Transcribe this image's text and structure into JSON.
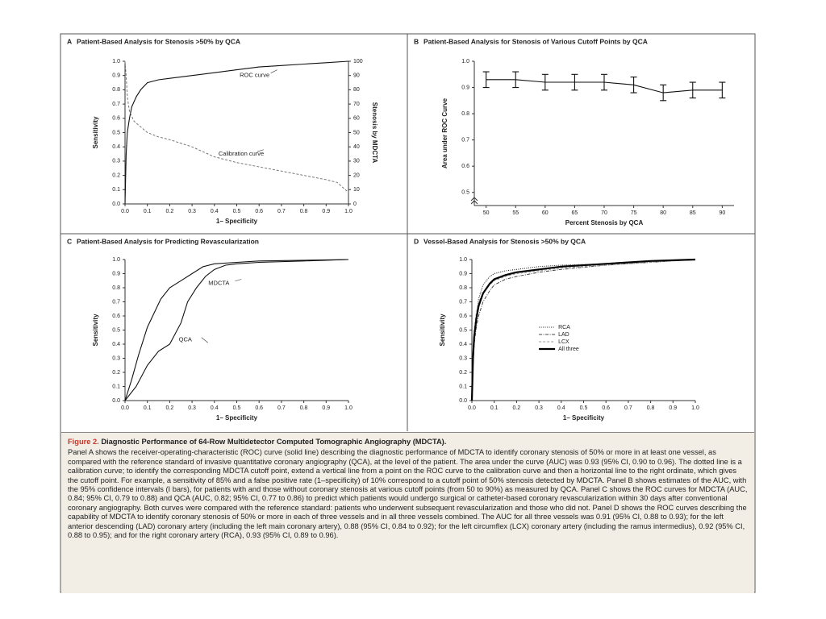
{
  "chart_data": [
    {
      "type": "line",
      "panel": "A",
      "title": "Patient-Based Analysis for Stenosis >50% by QCA",
      "xlabel": "1– Specificity",
      "ylabel": "Sensitivity",
      "y2label": "Stenosis by MDCTA",
      "xlim": [
        0,
        1
      ],
      "ylim": [
        0,
        1
      ],
      "y2lim": [
        0,
        100
      ],
      "xticks": [
        {
          "value": 0,
          "label": "0.0"
        },
        0.1,
        0.2,
        0.3,
        0.4,
        0.5,
        0.6,
        0.7,
        0.8,
        0.9,
        {
          "value": 1,
          "label": "1.0"
        }
      ],
      "yticks": [
        {
          "value": 0,
          "label": "0.0"
        },
        0.1,
        0.2,
        0.3,
        0.4,
        0.5,
        0.6,
        0.7,
        0.8,
        0.9,
        {
          "value": 1,
          "label": "1.0"
        }
      ],
      "y2ticks": [
        0,
        10,
        20,
        30,
        40,
        50,
        60,
        70,
        80,
        90,
        100
      ],
      "legend": "none",
      "series": [
        {
          "name": "ROC curve",
          "color": "#111111",
          "style": "solid",
          "x": [
            0,
            0.005,
            0.01,
            0.02,
            0.03,
            0.05,
            0.07,
            0.1,
            0.15,
            0.2,
            0.3,
            0.4,
            0.5,
            0.6,
            0.7,
            0.8,
            0.9,
            1.0
          ],
          "values": [
            0,
            0.35,
            0.5,
            0.6,
            0.68,
            0.75,
            0.8,
            0.85,
            0.87,
            0.88,
            0.9,
            0.92,
            0.94,
            0.96,
            0.97,
            0.98,
            0.99,
            1.0
          ]
        },
        {
          "name": "Calibration curve",
          "color": "#777777",
          "style": "dashed",
          "axis": "y2",
          "x": [
            0,
            0.005,
            0.01,
            0.02,
            0.04,
            0.07,
            0.1,
            0.15,
            0.2,
            0.3,
            0.4,
            0.5,
            0.6,
            0.7,
            0.8,
            0.9,
            0.95,
            1.0
          ],
          "values": [
            100,
            90,
            75,
            65,
            58,
            54,
            50,
            47,
            45,
            40,
            33,
            29,
            26,
            23,
            20,
            17,
            15,
            8
          ]
        }
      ]
    },
    {
      "type": "errorbar",
      "panel": "B",
      "title": "Patient-Based Analysis for Stenosis of Various Cutoff Points by QCA",
      "xlabel": "Percent Stenosis by QCA",
      "ylabel": "Area under ROC Curve",
      "xlim": [
        48,
        92
      ],
      "ylim": [
        0.45,
        1.0
      ],
      "xticks": [
        50,
        55,
        60,
        65,
        70,
        75,
        80,
        85,
        90
      ],
      "yticks": [
        0.5,
        0.6,
        0.7,
        0.8,
        0.9,
        {
          "value": 1,
          "label": "1.0"
        }
      ],
      "legend": "none",
      "series": [
        {
          "name": "AUC",
          "color": "#111111",
          "style": "solid",
          "x": [
            50,
            55,
            60,
            65,
            70,
            75,
            80,
            85,
            90
          ],
          "values": [
            0.93,
            0.93,
            0.92,
            0.92,
            0.92,
            0.91,
            0.88,
            0.89,
            0.89
          ],
          "errors": [
            0.03,
            0.03,
            0.03,
            0.03,
            0.03,
            0.03,
            0.03,
            0.03,
            0.03
          ]
        }
      ]
    },
    {
      "type": "line",
      "panel": "C",
      "title": "Patient-Based Analysis for Predicting Revascularization",
      "xlabel": "1– Specificity",
      "ylabel": "Sensitivity",
      "xlim": [
        0,
        1
      ],
      "ylim": [
        0,
        1
      ],
      "xticks": [
        {
          "value": 0,
          "label": "0.0"
        },
        0.1,
        0.2,
        0.3,
        0.4,
        0.5,
        0.6,
        0.7,
        0.8,
        0.9,
        {
          "value": 1,
          "label": "1.0"
        }
      ],
      "yticks": [
        {
          "value": 0,
          "label": "0.0"
        },
        0.1,
        0.2,
        0.3,
        0.4,
        0.5,
        0.6,
        0.7,
        0.8,
        0.9,
        {
          "value": 1,
          "label": "1.0"
        }
      ],
      "legend": "none",
      "series": [
        {
          "name": "MDCTA",
          "color": "#111111",
          "style": "solid",
          "x": [
            0,
            0.03,
            0.06,
            0.1,
            0.13,
            0.16,
            0.2,
            0.25,
            0.3,
            0.35,
            0.4,
            0.5,
            0.6,
            0.8,
            1.0
          ],
          "values": [
            0,
            0.15,
            0.32,
            0.52,
            0.62,
            0.72,
            0.8,
            0.85,
            0.9,
            0.95,
            0.97,
            0.98,
            0.99,
            0.995,
            1.0
          ]
        },
        {
          "name": "QCA",
          "color": "#111111",
          "style": "solid",
          "x": [
            0,
            0.05,
            0.1,
            0.15,
            0.2,
            0.25,
            0.28,
            0.32,
            0.36,
            0.4,
            0.45,
            0.5,
            0.6,
            0.8,
            1.0
          ],
          "values": [
            0,
            0.1,
            0.25,
            0.35,
            0.4,
            0.55,
            0.7,
            0.8,
            0.88,
            0.93,
            0.96,
            0.97,
            0.98,
            0.99,
            1.0
          ]
        }
      ]
    },
    {
      "type": "line",
      "panel": "D",
      "title": "Vessel-Based Analysis for Stenosis >50% by QCA",
      "xlabel": "1– Specificity",
      "ylabel": "Sensitivity",
      "xlim": [
        0,
        1
      ],
      "ylim": [
        0,
        1
      ],
      "xticks": [
        {
          "value": 0,
          "label": "0.0"
        },
        0.1,
        0.2,
        0.3,
        0.4,
        0.5,
        0.6,
        0.7,
        0.8,
        0.9,
        {
          "value": 1,
          "label": "1.0"
        }
      ],
      "yticks": [
        {
          "value": 0,
          "label": "0.0"
        },
        0.1,
        0.2,
        0.3,
        0.4,
        0.5,
        0.6,
        0.7,
        0.8,
        0.9,
        {
          "value": 1,
          "label": "1.0"
        }
      ],
      "legend": "center",
      "series": [
        {
          "name": "RCA",
          "color": "#222222",
          "style": "dotted",
          "x": [
            0,
            0.005,
            0.01,
            0.02,
            0.03,
            0.05,
            0.08,
            0.1,
            0.15,
            0.2,
            0.3,
            0.4,
            0.6,
            0.8,
            1.0
          ],
          "values": [
            0,
            0.3,
            0.45,
            0.6,
            0.72,
            0.82,
            0.88,
            0.9,
            0.92,
            0.93,
            0.95,
            0.96,
            0.97,
            0.99,
            1.0
          ]
        },
        {
          "name": "LAD",
          "color": "#444444",
          "style": "dash-dot",
          "x": [
            0,
            0.005,
            0.01,
            0.02,
            0.03,
            0.05,
            0.08,
            0.1,
            0.15,
            0.2,
            0.3,
            0.4,
            0.6,
            0.8,
            1.0
          ],
          "values": [
            0,
            0.25,
            0.4,
            0.52,
            0.6,
            0.7,
            0.78,
            0.82,
            0.86,
            0.88,
            0.91,
            0.93,
            0.96,
            0.98,
            1.0
          ]
        },
        {
          "name": "LCX",
          "color": "#999999",
          "style": "dashed",
          "x": [
            0,
            0.005,
            0.01,
            0.02,
            0.03,
            0.05,
            0.08,
            0.1,
            0.15,
            0.2,
            0.3,
            0.4,
            0.6,
            0.8,
            1.0
          ],
          "values": [
            0,
            0.35,
            0.5,
            0.62,
            0.7,
            0.76,
            0.82,
            0.85,
            0.88,
            0.9,
            0.92,
            0.94,
            0.96,
            0.98,
            1.0
          ]
        },
        {
          "name": "All three",
          "color": "#000000",
          "style": "bold",
          "x": [
            0,
            0.005,
            0.01,
            0.02,
            0.03,
            0.05,
            0.08,
            0.1,
            0.15,
            0.2,
            0.3,
            0.4,
            0.6,
            0.8,
            1.0
          ],
          "values": [
            0,
            0.3,
            0.45,
            0.58,
            0.67,
            0.76,
            0.83,
            0.86,
            0.89,
            0.91,
            0.93,
            0.95,
            0.97,
            0.99,
            1.0
          ]
        }
      ]
    }
  ],
  "caption": {
    "label": "Figure 2.",
    "title": "Diagnostic Performance of 64-Row Multidetector Computed Tomographic Angiography (MDCTA).",
    "text": "Panel A shows the receiver-operating-characteristic (ROC) curve (solid line) describing the diagnostic performance of MDCTA to identify coronary stenosis of 50% or more in at least one vessel, as compared with the reference standard of invasive quantitative coronary angiography (QCA), at the level of the patient. The area under the curve (AUC) was 0.93 (95% CI, 0.90 to 0.96). The dotted line is a calibration curve; to identify the corresponding MDCTA cutoff point, extend a vertical line from a point on the ROC curve to the calibration curve and then a horizontal line to the right ordinate, which gives the cutoff point. For example, a sensitivity of 85% and a false positive rate (1–specificity) of 10% correspond to a cutoff point of 50% stenosis detected by MDCTA. Panel B shows estimates of the AUC, with the 95% confidence intervals (I bars), for patients with and those without coronary stenosis at various cutoff points (from 50 to 90%) as measured by QCA. Panel C shows the ROC curves for MDCTA (AUC, 0.84; 95% CI, 0.79 to 0.88) and QCA (AUC, 0.82; 95% CI, 0.77 to 0.86) to predict which patients would undergo surgical or catheter-based coronary revascularization within 30 days after conventional coronary angiography. Both curves were compared with the reference standard: patients who underwent subsequent revascularization and those who did not. Panel D shows the ROC curves describing the capability of MDCTA to identify coronary stenosis of 50% or more in each of three vessels and in all three vessels combined. The AUC for all three vessels was 0.91 (95% CI, 0.88 to 0.93); for the left anterior descending (LAD) coronary artery (including the left main coronary artery), 0.88 (95% CI, 0.84 to 0.92); for the left circumflex (LCX) coronary artery (including the ramus intermedius), 0.92 (95% CI, 0.88 to 0.95); and for the right coronary artery (RCA), 0.93 (95% CI, 0.89 to 0.96)."
  }
}
